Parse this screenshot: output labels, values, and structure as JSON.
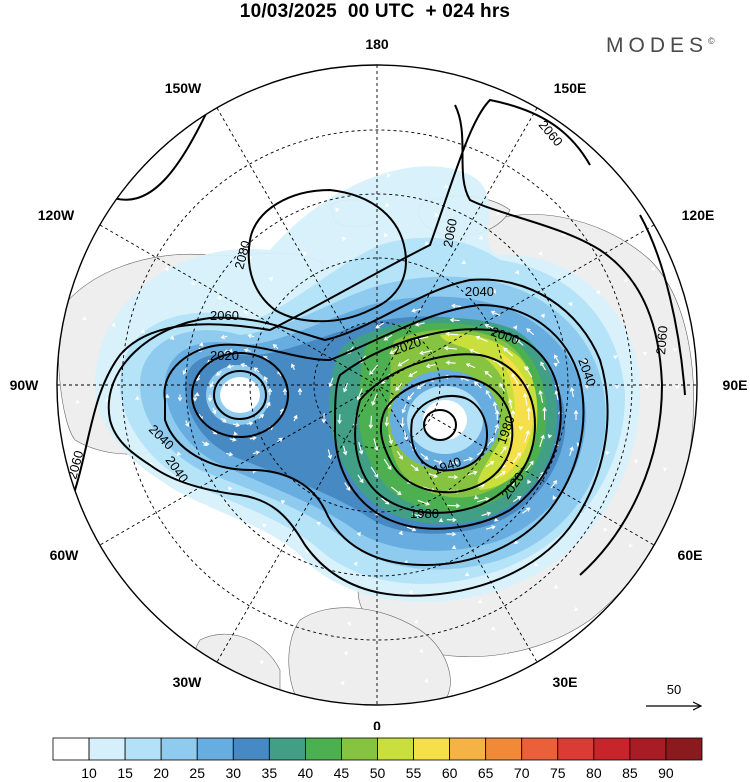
{
  "header": {
    "title": "10/03/2025  00 UTC  + 024 hrs",
    "brand": "MODES",
    "brand_mark": "©"
  },
  "longitude_labels": {
    "top": "180",
    "bottom": "0",
    "left": "90W",
    "right": "90E",
    "w150": "150W",
    "e150": "150E",
    "w120": "120W",
    "e120": "120E",
    "w60": "60W",
    "e60": "60E",
    "w30": "30W",
    "e30": "30E"
  },
  "contour_labels": [
    "2060",
    "2080",
    "2060",
    "2040",
    "2020",
    "2060",
    "2040",
    "2020",
    "2000",
    "2040",
    "2060",
    "1980",
    "1940",
    "2020",
    "1980",
    "2040",
    "2060"
  ],
  "reference_vector": {
    "label": "50"
  },
  "colorbar": {
    "ticks": [
      "10",
      "15",
      "20",
      "25",
      "30",
      "35",
      "40",
      "45",
      "50",
      "55",
      "60",
      "65",
      "70",
      "75",
      "80",
      "85",
      "90"
    ],
    "colors": [
      "#ffffff",
      "#d6f0fb",
      "#b3e1f7",
      "#8fcbee",
      "#67ade0",
      "#4789c2",
      "#419f86",
      "#4cb050",
      "#86c341",
      "#c8df3c",
      "#f5e04a",
      "#f5b345",
      "#f08a38",
      "#e9603a",
      "#db3b35",
      "#c7242c",
      "#a81d25",
      "#8b1a1f"
    ]
  }
}
